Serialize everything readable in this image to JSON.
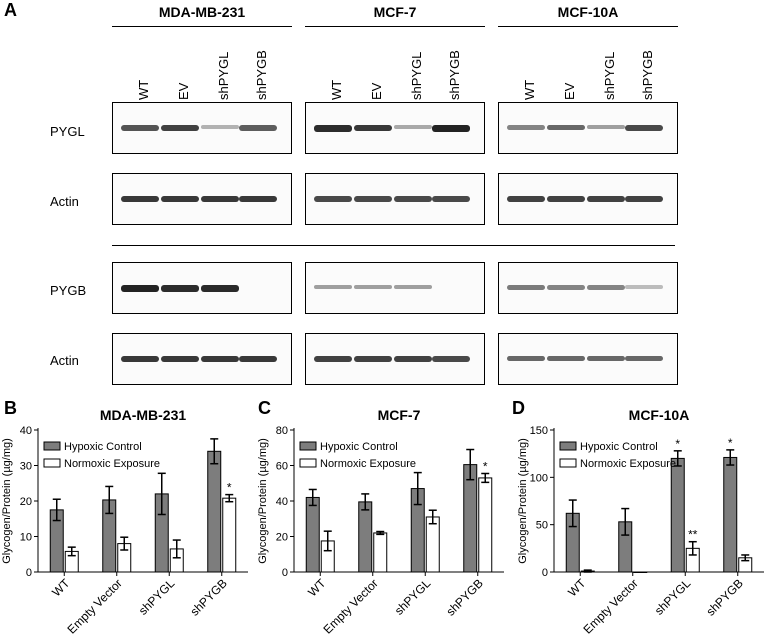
{
  "panel_a": {
    "letter": "A",
    "cell_lines": [
      "MDA-MB-231",
      "MCF-7",
      "MCF-10A"
    ],
    "lanes": [
      "WT",
      "EV",
      "shPYGL",
      "shPYGB"
    ],
    "rows": [
      {
        "label": "PYGL",
        "intensity": [
          [
            0.7,
            0.8,
            0.2,
            0.65
          ],
          [
            0.9,
            0.85,
            0.25,
            0.95
          ],
          [
            0.45,
            0.6,
            0.3,
            0.75
          ]
        ]
      },
      {
        "label": "Actin",
        "intensity": [
          [
            0.85,
            0.85,
            0.85,
            0.85
          ],
          [
            0.75,
            0.75,
            0.75,
            0.75
          ],
          [
            0.8,
            0.8,
            0.8,
            0.8
          ]
        ]
      },
      {
        "label": "PYGB",
        "intensity": [
          [
            0.95,
            0.9,
            0.92,
            0
          ],
          [
            0.3,
            0.3,
            0.3,
            0
          ],
          [
            0.5,
            0.45,
            0.45,
            0.15
          ]
        ]
      },
      {
        "label": "Actin",
        "intensity": [
          [
            0.85,
            0.85,
            0.85,
            0.85
          ],
          [
            0.8,
            0.8,
            0.8,
            0.75
          ],
          [
            0.6,
            0.6,
            0.6,
            0.6
          ]
        ]
      }
    ]
  },
  "chart_data": [
    {
      "panel": "B",
      "type": "bar",
      "title": "MDA-MB-231",
      "ylabel": "Glycogen/Protein (µg/mg)",
      "ylim": [
        0,
        40
      ],
      "yticks": [
        0,
        10,
        20,
        30,
        40
      ],
      "categories": [
        "WT",
        "Empty Vector",
        "shPYGL",
        "shPYGB"
      ],
      "series": [
        {
          "name": "Hypoxic Control",
          "values": [
            17.5,
            20.3,
            22,
            34
          ],
          "errors": [
            3,
            3.8,
            5.8,
            3.5
          ]
        },
        {
          "name": "Normoxic Exposure",
          "values": [
            5.8,
            8,
            6.5,
            20.8
          ],
          "errors": [
            1.2,
            1.8,
            2.5,
            1
          ]
        }
      ],
      "annotations": [
        {
          "series": 1,
          "category": 3,
          "text": "*"
        }
      ],
      "legend": "top-left"
    },
    {
      "panel": "C",
      "type": "bar",
      "title": "MCF-7",
      "ylabel": "Glycogen/Protein (µg/mg)",
      "ylim": [
        0,
        80
      ],
      "yticks": [
        0,
        20,
        40,
        60,
        80
      ],
      "categories": [
        "WT",
        "Empty Vector",
        "shPYGL",
        "shPYGB"
      ],
      "series": [
        {
          "name": "Hypoxic Control",
          "values": [
            42,
            39.5,
            47,
            60.5
          ],
          "errors": [
            4.5,
            4.5,
            9,
            8.5
          ]
        },
        {
          "name": "Normoxic Exposure",
          "values": [
            17.5,
            22,
            31,
            53
          ],
          "errors": [
            5.5,
            0.8,
            3.8,
            2.5
          ]
        }
      ],
      "annotations": [
        {
          "series": 1,
          "category": 3,
          "text": "*"
        }
      ],
      "legend": "top-left"
    },
    {
      "panel": "D",
      "type": "bar",
      "title": "MCF-10A",
      "ylabel": "Glycogen/Protein (µg/mg)",
      "ylim": [
        0,
        150
      ],
      "yticks": [
        0,
        50,
        100,
        150
      ],
      "categories": [
        "WT",
        "Empty Vector",
        "shPYGL",
        "shPYGB"
      ],
      "series": [
        {
          "name": "Hypoxic Control",
          "values": [
            62,
            53,
            120,
            121
          ],
          "errors": [
            14,
            14,
            8,
            8
          ]
        },
        {
          "name": "Normoxic Exposure",
          "values": [
            1,
            0,
            25,
            15
          ],
          "errors": [
            1,
            0,
            7,
            3
          ]
        }
      ],
      "annotations": [
        {
          "series": 0,
          "category": 2,
          "text": "*"
        },
        {
          "series": 0,
          "category": 3,
          "text": "*"
        },
        {
          "series": 1,
          "category": 2,
          "text": "**"
        }
      ],
      "legend": "top-left"
    }
  ],
  "colors": {
    "hypoxic": "#7d7d7d",
    "normoxic": "#ffffff",
    "band": "#1a1a1a"
  }
}
